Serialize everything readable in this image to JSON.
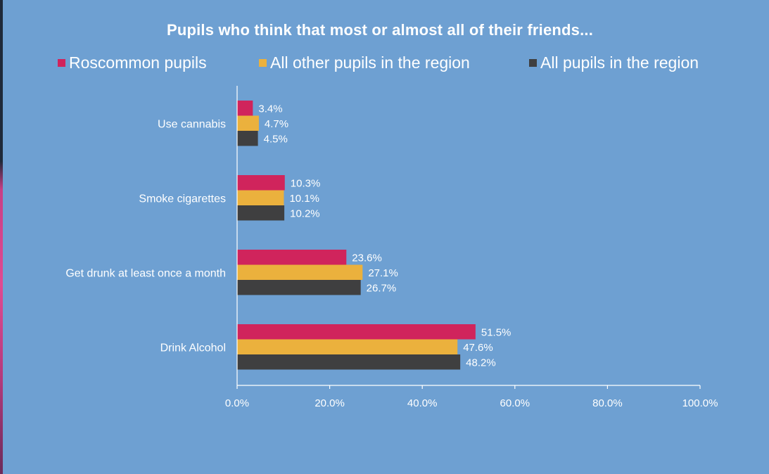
{
  "chart_data": {
    "type": "bar",
    "orientation": "horizontal",
    "title": "Pupils who think that most or almost all of their friends...",
    "categories": [
      "Use cannabis",
      "Smoke cigarettes",
      "Get drunk at least once a month",
      "Drink Alcohol"
    ],
    "series": [
      {
        "name": "Roscommon pupils",
        "color": "#d0245c",
        "values": [
          3.4,
          10.3,
          23.6,
          51.5
        ]
      },
      {
        "name": "All other pupils in the region",
        "color": "#ebb13d",
        "values": [
          4.7,
          10.1,
          27.1,
          47.6
        ]
      },
      {
        "name": "All pupils in the region",
        "color": "#3f3f40",
        "values": [
          4.5,
          10.2,
          26.7,
          48.2
        ]
      }
    ],
    "xlim": [
      0,
      100
    ],
    "xticks": [
      0,
      20,
      40,
      60,
      80,
      100
    ],
    "value_suffix": "%",
    "legend_position": "top",
    "grid": false
  },
  "colors": {
    "background": "#6ea0d2",
    "text": "#ffffff",
    "axis": "#ffffff"
  }
}
